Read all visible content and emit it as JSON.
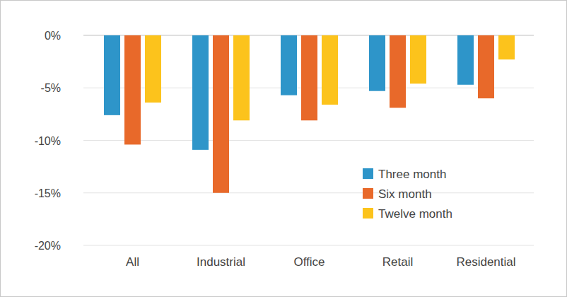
{
  "chart_data": {
    "type": "bar",
    "categories": [
      "All",
      "Industrial",
      "Office",
      "Retail",
      "Residential"
    ],
    "series": [
      {
        "name": "Three month",
        "color": "#2e95c9",
        "values": [
          -7.6,
          -10.9,
          -5.7,
          -5.3,
          -4.7
        ]
      },
      {
        "name": "Six month",
        "color": "#e8692a",
        "values": [
          -10.4,
          -15.0,
          -8.1,
          -6.9,
          -6.0
        ]
      },
      {
        "name": "Twelve month",
        "color": "#fcc31c",
        "values": [
          -6.4,
          -8.1,
          -6.6,
          -4.6,
          -2.3
        ]
      }
    ],
    "ylim": [
      -20,
      0
    ],
    "yticks": [
      {
        "value": 0,
        "label": "0%"
      },
      {
        "value": -5,
        "label": "-5%"
      },
      {
        "value": -10,
        "label": "-10%"
      },
      {
        "value": -15,
        "label": "-15%"
      },
      {
        "value": -20,
        "label": "-20%"
      }
    ],
    "grid": true,
    "legend": "lower right"
  }
}
